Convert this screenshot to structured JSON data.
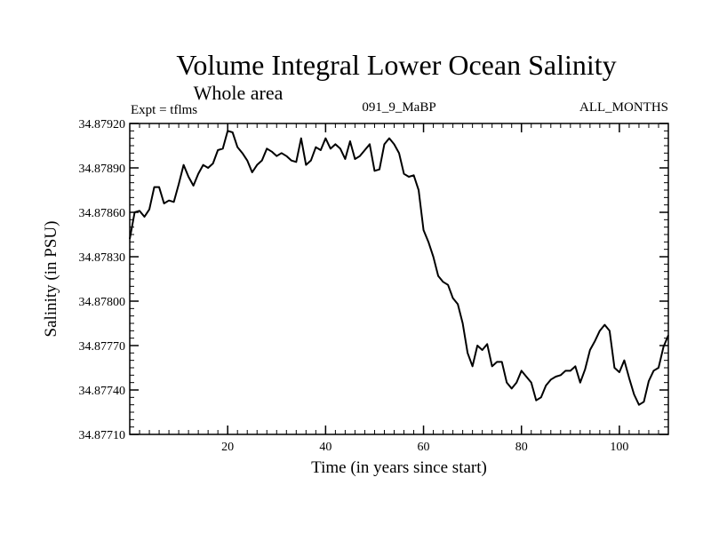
{
  "chart_data": {
    "type": "line",
    "title": "Volume Integral Lower Ocean Salinity",
    "subtitle": "Whole area",
    "expt_label": "Expt = tflms",
    "run_label": "091_9_MaBP",
    "months_label": "ALL_MONTHS",
    "xlabel": "Time (in years since start)",
    "ylabel": "Salinity (in PSU)",
    "xlim": [
      0,
      110
    ],
    "ylim": [
      34.8771,
      34.8792
    ],
    "x_ticks": [
      "20",
      "40",
      "60",
      "80",
      "100"
    ],
    "y_ticks": [
      "34.87710",
      "34.87740",
      "34.87770",
      "34.87800",
      "34.87830",
      "34.87860",
      "34.87890",
      "34.87920"
    ],
    "series": [
      {
        "name": "Salinity",
        "color": "#000000",
        "x": [
          0,
          1,
          2,
          3,
          4,
          5,
          6,
          7,
          8,
          9,
          10,
          11,
          12,
          13,
          14,
          15,
          16,
          17,
          18,
          19,
          20,
          21,
          22,
          23,
          24,
          25,
          26,
          27,
          28,
          29,
          30,
          31,
          32,
          33,
          34,
          35,
          36,
          37,
          38,
          39,
          40,
          41,
          42,
          43,
          44,
          45,
          46,
          47,
          48,
          49,
          50,
          51,
          52,
          53,
          54,
          55,
          56,
          57,
          58,
          59,
          60,
          61,
          62,
          63,
          64,
          65,
          66,
          67,
          68,
          69,
          70,
          71,
          72,
          73,
          74,
          75,
          76,
          77,
          78,
          79,
          80,
          81,
          82,
          83,
          84,
          85,
          86,
          87,
          88,
          89,
          90,
          91,
          92,
          93,
          94,
          95,
          96,
          97,
          98,
          99,
          100,
          101,
          102,
          103,
          104,
          105,
          106,
          107,
          108,
          109,
          110
        ],
        "values": [
          34.87842,
          34.8786,
          34.87861,
          34.87857,
          34.87862,
          34.87877,
          34.87877,
          34.87866,
          34.87868,
          34.87867,
          34.87879,
          34.87892,
          34.87884,
          34.87878,
          34.87886,
          34.87892,
          34.8789,
          34.87893,
          34.87902,
          34.87903,
          34.87915,
          34.87914,
          34.87904,
          34.879,
          34.87895,
          34.87887,
          34.87892,
          34.87895,
          34.87903,
          34.87901,
          34.87898,
          34.879,
          34.87898,
          34.87895,
          34.87894,
          34.8791,
          34.87892,
          34.87895,
          34.87904,
          34.87902,
          34.8791,
          34.87903,
          34.87906,
          34.87903,
          34.87896,
          34.87908,
          34.87896,
          34.87898,
          34.87902,
          34.87906,
          34.87888,
          34.87889,
          34.87906,
          34.8791,
          34.87906,
          34.879,
          34.87886,
          34.87884,
          34.87885,
          34.87875,
          34.87848,
          34.8784,
          34.8783,
          34.87817,
          34.87813,
          34.87811,
          34.87802,
          34.87798,
          34.87785,
          34.87765,
          34.87756,
          34.8777,
          34.87767,
          34.87771,
          34.87756,
          34.87759,
          34.87759,
          34.87745,
          34.87741,
          34.87745,
          34.87753,
          34.87749,
          34.87745,
          34.87733,
          34.87735,
          34.87743,
          34.87747,
          34.87749,
          34.8775,
          34.87753,
          34.87753,
          34.87756,
          34.87745,
          34.87754,
          34.87767,
          34.87773,
          34.8778,
          34.87784,
          34.8778,
          34.87755,
          34.87752,
          34.8776,
          34.87748,
          34.87737,
          34.8773,
          34.87732,
          34.87746,
          34.87753,
          34.87755,
          34.87769,
          34.87777
        ]
      }
    ]
  }
}
